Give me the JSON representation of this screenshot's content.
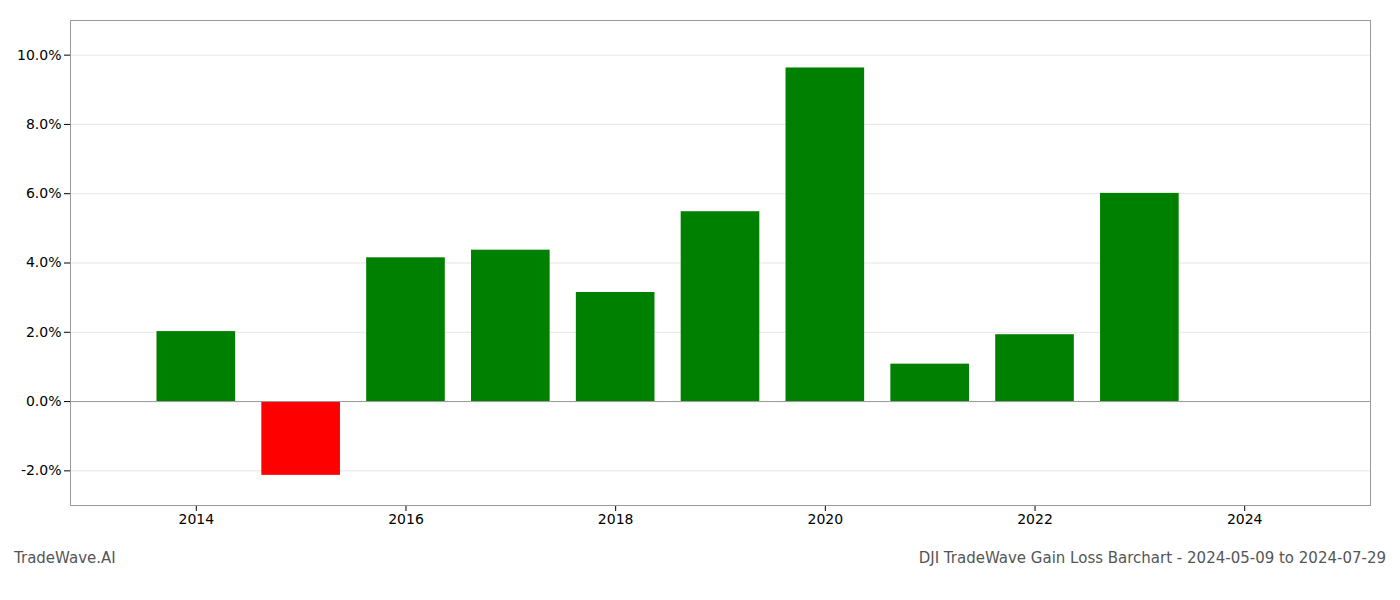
{
  "chart_data": {
    "type": "bar",
    "title": "DJI TradeWave Gain Loss Barchart - 2024-05-09 to 2024-07-29",
    "annotations": [
      "TradeWave.AI"
    ],
    "x": [
      2014,
      2015,
      2016,
      2017,
      2018,
      2019,
      2020,
      2021,
      2022,
      2023
    ],
    "values": [
      0.0202,
      -0.0213,
      0.0415,
      0.0437,
      0.0315,
      0.0548,
      0.0963,
      0.0108,
      0.0193,
      0.0601
    ],
    "colors": [
      "#008000",
      "#ff0000",
      "#008000",
      "#008000",
      "#008000",
      "#008000",
      "#008000",
      "#008000",
      "#008000",
      "#008000"
    ],
    "xlim": [
      2012.8,
      2025.2
    ],
    "xticks": [
      2014,
      2016,
      2018,
      2020,
      2022,
      2024
    ],
    "ylim": [
      -0.03,
      0.11
    ],
    "yticks": [
      {
        "value": -0.02,
        "label": "-2.0%"
      },
      {
        "value": 0.0,
        "label": "0.0%"
      },
      {
        "value": 0.02,
        "label": "2.0%"
      },
      {
        "value": 0.04,
        "label": "4.0%"
      },
      {
        "value": 0.06,
        "label": "6.0%"
      },
      {
        "value": 0.08,
        "label": "8.0%"
      },
      {
        "value": 0.1,
        "label": "10.0%"
      }
    ],
    "grid": true
  }
}
